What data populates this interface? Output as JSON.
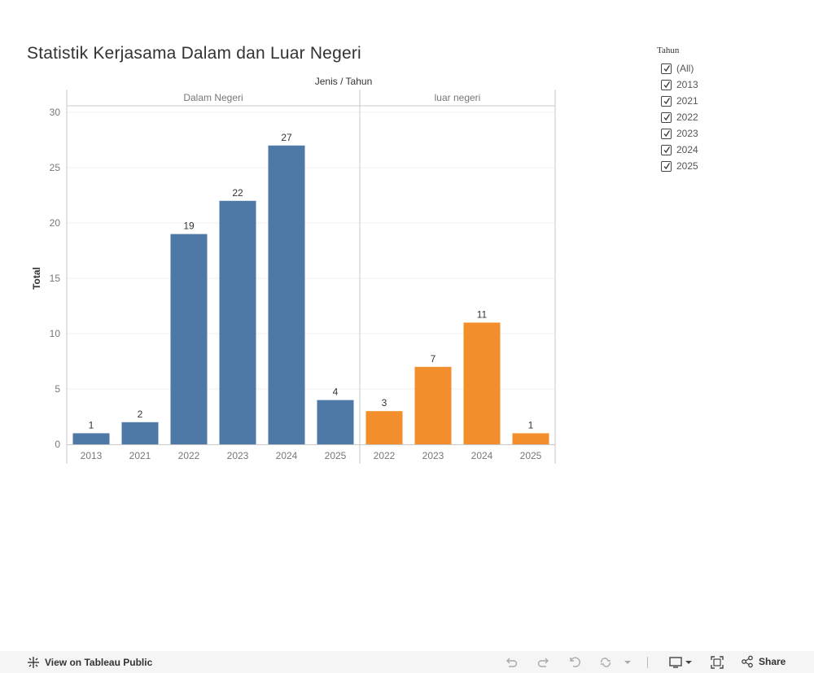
{
  "title": "Statistik Kerjasama Dalam dan Luar Negeri",
  "filter": {
    "title": "Tahun",
    "items": [
      "(All)",
      "2013",
      "2021",
      "2022",
      "2023",
      "2024",
      "2025"
    ]
  },
  "colors": {
    "dalam": "#4e79a7",
    "luar": "#f28e2b"
  },
  "chart_data": {
    "type": "bar",
    "column_header": "Jenis / Tahun",
    "ylabel": "Total",
    "ylim": [
      0,
      30
    ],
    "yticks": [
      0,
      5,
      10,
      15,
      20,
      25,
      30
    ],
    "grid": true,
    "panels": [
      {
        "name": "Dalam Negeri",
        "categories": [
          "2013",
          "2021",
          "2022",
          "2023",
          "2024",
          "2025"
        ],
        "values": [
          1,
          2,
          19,
          22,
          27,
          4
        ]
      },
      {
        "name": "luar negeri",
        "categories": [
          "2022",
          "2023",
          "2024",
          "2025"
        ],
        "values": [
          3,
          7,
          11,
          1
        ]
      }
    ]
  },
  "footer": {
    "view_label": "View on Tableau Public",
    "share_label": "Share"
  }
}
